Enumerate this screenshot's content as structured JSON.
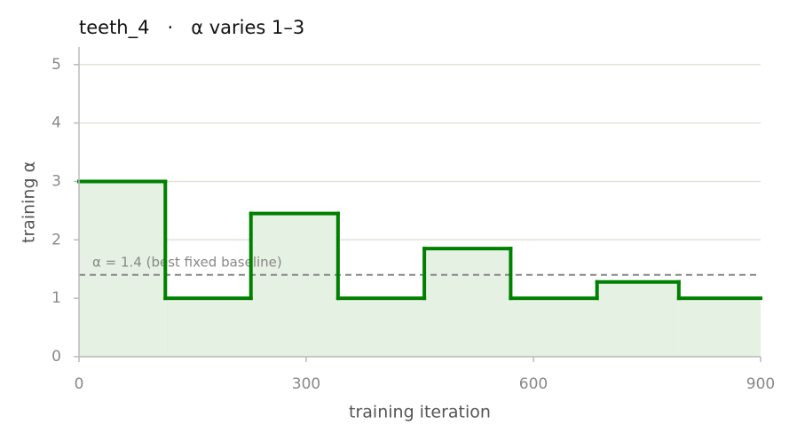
{
  "chart_data": {
    "type": "step",
    "title": "teeth_4   ·   α varies 1–3",
    "xlabel": "training iteration",
    "ylabel": "training α",
    "x": [
      0,
      114,
      227,
      342,
      456,
      570,
      684,
      792
    ],
    "values": [
      3,
      1,
      2.45,
      1,
      1.85,
      1,
      1.28,
      1
    ],
    "color": "#008000",
    "fill_color": "#e5f1e3",
    "baseline": {
      "value": 1.4,
      "label": "α = 1.4 (best fixed baseline)",
      "color": "#888888"
    },
    "xlim": [
      0,
      900
    ],
    "xticks": [
      0,
      300,
      600,
      900
    ],
    "ylim": [
      0,
      5.3
    ],
    "yticks": [
      0,
      1,
      2,
      3,
      4,
      5
    ],
    "grid": true
  }
}
